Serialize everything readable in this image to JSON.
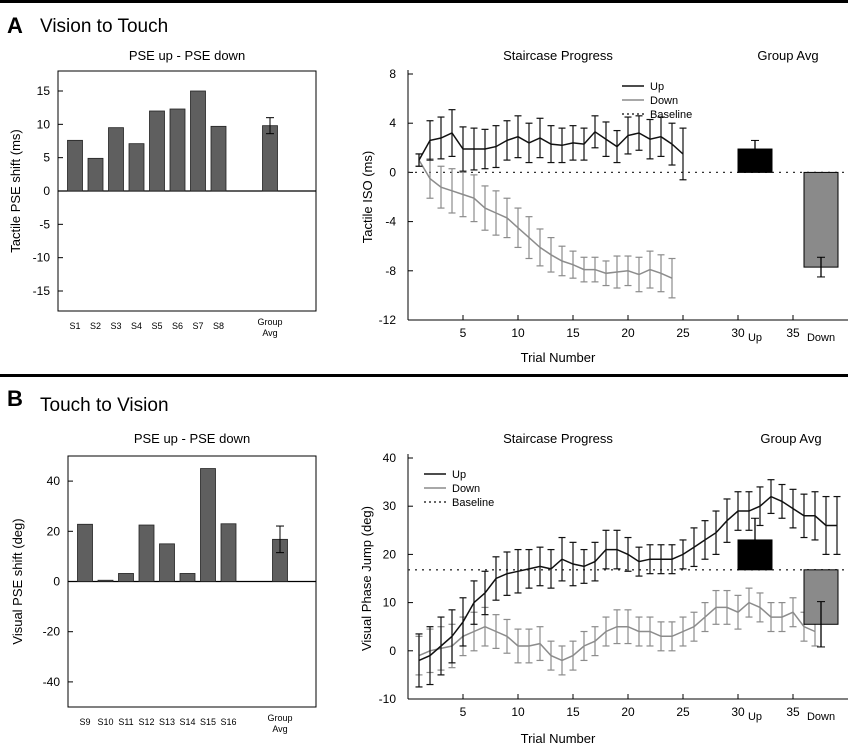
{
  "panels": [
    {
      "letter": "A",
      "title": "Vision to Touch",
      "left": {
        "title": "PSE up - PSE down",
        "ylabel": "Tactile PSE shift (ms)",
        "ylim": [
          -18,
          18
        ],
        "yticks": [
          15,
          10,
          5,
          0,
          -5,
          -10,
          -15
        ],
        "subjects": [
          "S1",
          "S2",
          "S3",
          "S4",
          "S5",
          "S6",
          "S7",
          "S8"
        ],
        "values": [
          7.6,
          4.9,
          9.5,
          7.1,
          12.0,
          12.3,
          15.0,
          9.7
        ],
        "group": {
          "label1": "Group",
          "label2": "Avg",
          "value": 9.8,
          "err": 1.2
        }
      },
      "staircase": {
        "title": "Staircase Progress",
        "ylabel": "Tactile ISO (ms)",
        "xlabel": "Trial Number",
        "xticks": [
          5,
          10,
          15,
          20,
          25,
          30,
          35
        ],
        "yticks": [
          8,
          4,
          0,
          -4,
          -8,
          -12
        ],
        "baseline": 0,
        "legend": [
          "Up",
          "Down",
          "Baseline"
        ],
        "up": {
          "x": [
            1,
            2,
            3,
            4,
            5,
            6,
            7,
            8,
            9,
            10,
            11,
            12,
            13,
            14,
            15,
            16,
            17,
            18,
            19,
            20,
            21,
            22,
            23,
            24,
            25
          ],
          "y": [
            1.0,
            2.6,
            2.8,
            3.2,
            1.9,
            1.9,
            1.9,
            2.1,
            2.6,
            2.9,
            2.4,
            2.8,
            2.3,
            2.2,
            2.4,
            2.3,
            3.3,
            2.7,
            2.1,
            3.0,
            3.2,
            2.7,
            2.9,
            2.3,
            1.5
          ],
          "err": [
            0.5,
            1.6,
            1.7,
            1.9,
            1.8,
            1.7,
            1.6,
            1.7,
            1.6,
            1.7,
            1.6,
            1.6,
            1.5,
            1.4,
            1.4,
            1.3,
            1.3,
            1.4,
            1.3,
            1.5,
            1.4,
            1.6,
            1.6,
            1.7,
            2.1
          ]
        },
        "down": {
          "x": [
            1,
            2,
            3,
            4,
            5,
            6,
            7,
            8,
            9,
            10,
            11,
            12,
            13,
            14,
            15,
            16,
            17,
            18,
            19,
            20,
            21,
            22,
            23,
            24
          ],
          "y": [
            1.0,
            -0.5,
            -1.2,
            -1.5,
            -1.8,
            -2.1,
            -2.9,
            -3.3,
            -3.7,
            -4.5,
            -5.3,
            -6.1,
            -6.7,
            -7.2,
            -7.5,
            -7.9,
            -7.9,
            -8.2,
            -8.1,
            -8.0,
            -8.3,
            -7.9,
            -8.2,
            -8.6
          ],
          "err": [
            0.5,
            1.6,
            1.7,
            1.8,
            1.8,
            1.9,
            1.8,
            1.8,
            1.6,
            1.6,
            1.7,
            1.5,
            1.4,
            1.2,
            1.1,
            1.0,
            1.0,
            1.0,
            1.3,
            1.2,
            1.4,
            1.5,
            1.5,
            1.6
          ]
        }
      },
      "group_avg": {
        "title": "Group Avg",
        "labels": [
          "Up",
          "Down"
        ],
        "values": [
          1.9,
          -7.7
        ],
        "err": [
          0.7,
          0.8
        ]
      }
    },
    {
      "letter": "B",
      "title": "Touch to Vision",
      "left": {
        "title": "PSE up - PSE down",
        "ylabel": "Visual PSE shift (deg)",
        "ylim": [
          -50,
          50
        ],
        "yticks": [
          40,
          20,
          0,
          -20,
          -40
        ],
        "subjects": [
          "S9",
          "S10",
          "S11",
          "S12",
          "S13",
          "S14",
          "S15",
          "S16"
        ],
        "values": [
          22.8,
          0.5,
          3.2,
          22.5,
          15.0,
          3.2,
          45.0,
          23.0
        ],
        "group": {
          "label1": "Group",
          "label2": "Avg",
          "value": 16.8,
          "err": 5.3
        }
      },
      "staircase": {
        "title": "Staircase Progress",
        "ylabel": "Visual Phase Jump (deg)",
        "xlabel": "Trial Number",
        "xticks": [
          5,
          10,
          15,
          20,
          25,
          30,
          35
        ],
        "yticks": [
          40,
          30,
          20,
          10,
          0,
          -10
        ],
        "baseline": 16.8,
        "legend": [
          "Up",
          "Down",
          "Baseline"
        ],
        "up": {
          "x": [
            1,
            2,
            3,
            4,
            5,
            6,
            7,
            8,
            9,
            10,
            11,
            12,
            13,
            14,
            15,
            16,
            17,
            18,
            19,
            20,
            21,
            22,
            23,
            24,
            25,
            26,
            27,
            28,
            29,
            30,
            31,
            32,
            33,
            34,
            35,
            36,
            37,
            38,
            39
          ],
          "y": [
            -2,
            -1,
            1,
            3,
            6,
            10,
            12,
            15,
            16,
            16.5,
            17,
            17.5,
            17,
            19,
            18,
            17.5,
            18.5,
            21,
            21,
            20,
            18.5,
            19,
            19,
            19,
            20,
            21.5,
            23,
            24.5,
            27,
            29,
            29,
            30,
            32,
            31,
            29.5,
            28,
            28,
            26,
            26
          ],
          "err": [
            5.5,
            6,
            6,
            5.5,
            5,
            4.5,
            4.5,
            4.5,
            4.5,
            4.5,
            4,
            4,
            4,
            4.5,
            4.5,
            3.5,
            4,
            4,
            4,
            3.5,
            3,
            3,
            3,
            3,
            3,
            4,
            4,
            4.5,
            4.5,
            4,
            4,
            4,
            3.5,
            3.5,
            4,
            4.5,
            5,
            6,
            6
          ]
        },
        "down": {
          "x": [
            1,
            2,
            3,
            4,
            5,
            6,
            7,
            8,
            9,
            10,
            11,
            12,
            13,
            14,
            15,
            16,
            17,
            18,
            19,
            20,
            21,
            22,
            23,
            24,
            25,
            26,
            27,
            28,
            29,
            30,
            31,
            32,
            33,
            34,
            35,
            36,
            37
          ],
          "y": [
            -1,
            0,
            0.5,
            1,
            3,
            4,
            5,
            4,
            3,
            1,
            1,
            1.5,
            -1,
            -2,
            -1,
            1,
            2,
            4,
            5,
            5,
            4,
            4,
            3,
            3,
            4,
            5,
            7,
            9,
            9,
            8,
            10,
            9,
            7,
            7,
            8,
            5,
            4
          ],
          "err": [
            4,
            4.5,
            4.5,
            4.5,
            4,
            4,
            4,
            3.5,
            3.5,
            3.5,
            3.5,
            3.5,
            3,
            3,
            3,
            3,
            3,
            3,
            3.5,
            3.5,
            3,
            3,
            3,
            3,
            3,
            3,
            3,
            3.5,
            3.5,
            3.5,
            3,
            3,
            3,
            3,
            3,
            3,
            3
          ]
        }
      },
      "group_avg": {
        "title": "Group Avg",
        "labels": [
          "Up",
          "Down"
        ],
        "values": [
          23.0,
          5.5
        ],
        "err": [
          4.5,
          4.7
        ]
      }
    }
  ]
}
